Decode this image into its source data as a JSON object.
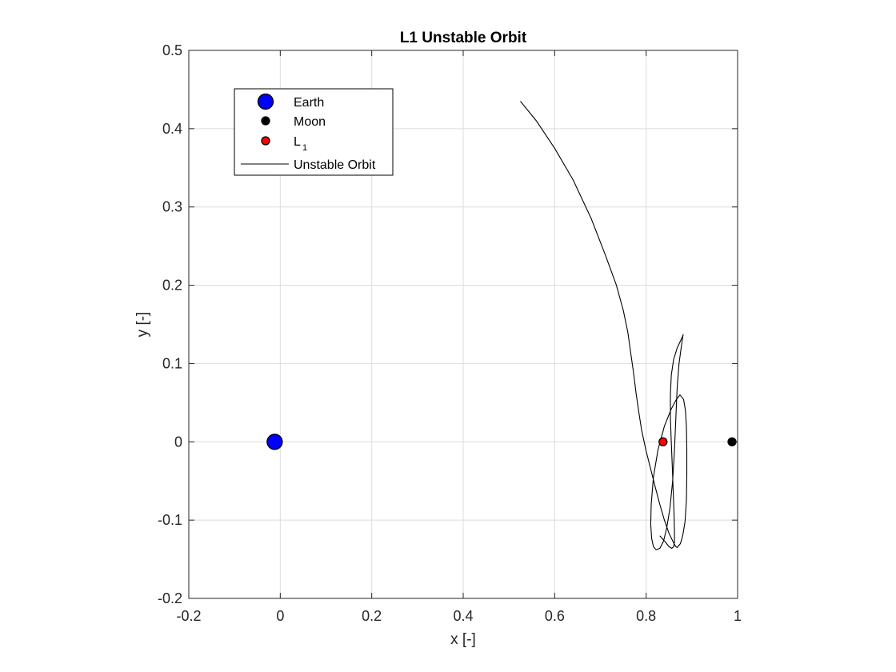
{
  "chart_data": {
    "type": "line",
    "title": "L1 Unstable Orbit",
    "xlabel": "x [-]",
    "ylabel": "y [-]",
    "xlim": [
      -0.2,
      1.0
    ],
    "ylim": [
      -0.2,
      0.5
    ],
    "grid": true,
    "legend_position": "top-left",
    "x_ticks": [
      -0.2,
      0,
      0.2,
      0.4,
      0.6,
      0.8,
      1
    ],
    "x_tick_labels": [
      "-0.2",
      "0",
      "0.2",
      "0.4",
      "0.6",
      "0.8",
      "1"
    ],
    "y_ticks": [
      -0.2,
      -0.1,
      0,
      0.1,
      0.2,
      0.3,
      0.4,
      0.5
    ],
    "y_tick_labels": [
      "-0.2",
      "-0.1",
      "0",
      "0.1",
      "0.2",
      "0.3",
      "0.4",
      "0.5"
    ],
    "points": [
      {
        "name": "Earth",
        "legend_label": "Earth",
        "x": -0.0122,
        "y": 0,
        "color": "#0000ff",
        "size": "large"
      },
      {
        "name": "Moon",
        "legend_label": "Moon",
        "x": 0.9878,
        "y": 0,
        "color": "#000000",
        "size": "small"
      },
      {
        "name": "L1",
        "legend_label": "L",
        "legend_subscript": "1",
        "x": 0.8369,
        "y": 0,
        "color": "#ff0000",
        "size": "small"
      }
    ],
    "series": [
      {
        "name": "Unstable Orbit",
        "color": "#000000",
        "x": [
          0.525,
          0.56,
          0.6,
          0.64,
          0.68,
          0.71,
          0.735,
          0.75,
          0.76,
          0.766,
          0.772,
          0.778,
          0.784,
          0.79,
          0.8,
          0.81,
          0.82,
          0.83,
          0.84,
          0.85,
          0.86,
          0.865,
          0.868,
          0.875,
          0.88,
          0.885,
          0.888,
          0.889,
          0.889,
          0.888,
          0.886,
          0.882,
          0.874,
          0.866,
          0.855,
          0.84,
          0.826,
          0.816,
          0.811,
          0.81,
          0.812,
          0.816,
          0.822,
          0.83,
          0.838,
          0.845,
          0.852,
          0.858,
          0.862,
          0.865,
          0.868,
          0.872,
          0.877,
          0.88,
          0.881,
          0.88,
          0.876,
          0.868,
          0.86,
          0.855,
          0.853,
          0.853,
          0.855,
          0.857,
          0.859,
          0.861,
          0.862,
          0.862,
          0.86,
          0.856,
          0.85,
          0.842,
          0.83
        ],
        "y": [
          0.435,
          0.41,
          0.375,
          0.335,
          0.285,
          0.24,
          0.2,
          0.168,
          0.14,
          0.115,
          0.09,
          0.062,
          0.038,
          0.015,
          -0.012,
          -0.035,
          -0.058,
          -0.08,
          -0.1,
          -0.117,
          -0.129,
          -0.134,
          -0.135,
          -0.13,
          -0.12,
          -0.102,
          -0.075,
          -0.045,
          -0.01,
          0.02,
          0.04,
          0.054,
          0.06,
          0.054,
          0.042,
          0.02,
          -0.01,
          -0.045,
          -0.08,
          -0.105,
          -0.123,
          -0.134,
          -0.138,
          -0.136,
          -0.127,
          -0.11,
          -0.085,
          -0.05,
          -0.01,
          0.03,
          0.07,
          0.1,
          0.122,
          0.134,
          0.137,
          0.135,
          0.13,
          0.12,
          0.105,
          0.085,
          0.06,
          0.03,
          0.0,
          -0.03,
          -0.06,
          -0.09,
          -0.115,
          -0.128,
          -0.134,
          -0.136,
          -0.134,
          -0.128,
          -0.12
        ]
      }
    ]
  }
}
